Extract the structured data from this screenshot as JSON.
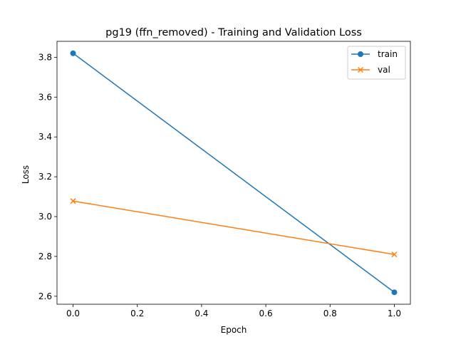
{
  "chart_data": {
    "type": "line",
    "title": "pg19 (ffn_removed) - Training and Validation Loss",
    "xlabel": "Epoch",
    "ylabel": "Loss",
    "x": [
      0,
      1
    ],
    "series": [
      {
        "name": "train",
        "values": [
          3.82,
          2.62
        ],
        "color": "#1f77b4",
        "marker": "circle"
      },
      {
        "name": "val",
        "values": [
          3.078,
          2.81
        ],
        "color": "#ff7f0e",
        "marker": "x"
      }
    ],
    "xlim": [
      -0.05,
      1.05
    ],
    "ylim": [
      2.56,
      3.88
    ],
    "xticks": [
      0.0,
      0.2,
      0.4,
      0.6,
      0.8,
      1.0
    ],
    "xtick_labels": [
      "0.0",
      "0.2",
      "0.4",
      "0.6",
      "0.8",
      "1.0"
    ],
    "yticks": [
      2.6,
      2.8,
      3.0,
      3.2,
      3.4,
      3.6,
      3.8
    ],
    "ytick_labels": [
      "2.6",
      "2.8",
      "3.0",
      "3.2",
      "3.4",
      "3.6",
      "3.8"
    ],
    "grid": false,
    "legend_position": "top-right"
  }
}
